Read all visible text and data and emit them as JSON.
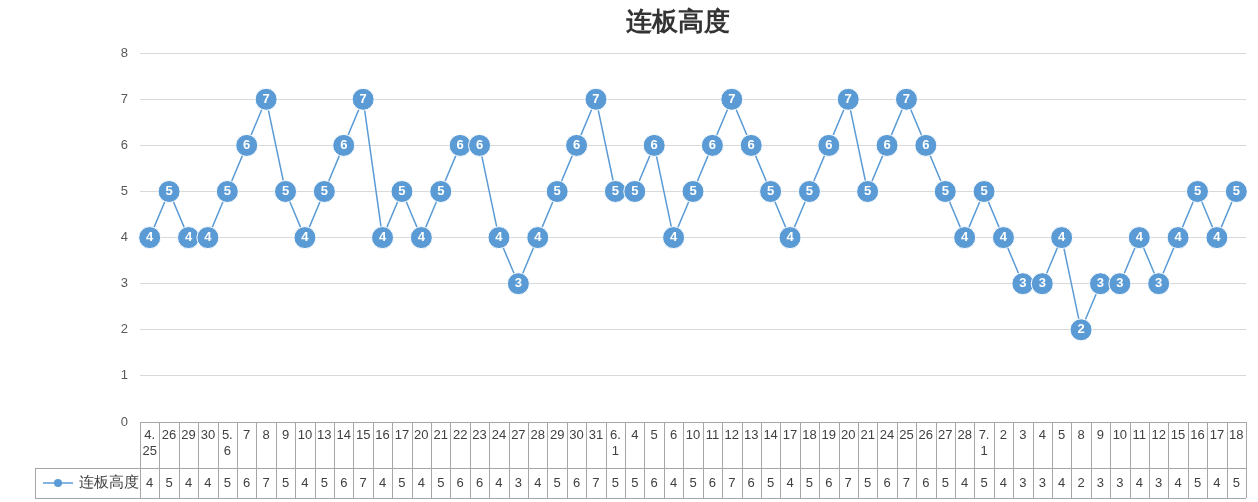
{
  "chart_data": {
    "type": "line",
    "title": "连板高度",
    "categories": [
      "4.25",
      "26",
      "29",
      "30",
      "5.6",
      "7",
      "8",
      "9",
      "10",
      "13",
      "14",
      "15",
      "16",
      "17",
      "20",
      "21",
      "22",
      "23",
      "24",
      "27",
      "28",
      "29",
      "30",
      "31",
      "6.1",
      "4",
      "5",
      "6",
      "10",
      "11",
      "12",
      "13",
      "14",
      "17",
      "18",
      "19",
      "20",
      "21",
      "24",
      "25",
      "26",
      "27",
      "28",
      "7.1",
      "2",
      "3",
      "4",
      "5",
      "8",
      "9",
      "10",
      "11",
      "12",
      "15",
      "16",
      "17",
      "18"
    ],
    "series": [
      {
        "name": "连板高度",
        "color": "#5b9bd5",
        "values": [
          4,
          5,
          4,
          4,
          5,
          6,
          7,
          5,
          4,
          5,
          6,
          7,
          4,
          5,
          4,
          5,
          6,
          6,
          4,
          3,
          4,
          5,
          6,
          7,
          5,
          5,
          6,
          4,
          5,
          6,
          7,
          6,
          5,
          4,
          5,
          6,
          7,
          5,
          6,
          7,
          6,
          5,
          4,
          5,
          4,
          3,
          3,
          4,
          2,
          3,
          3,
          4,
          3,
          4,
          5,
          4,
          5
        ]
      }
    ],
    "ylim": [
      0,
      8
    ],
    "yticks": [
      0,
      1,
      2,
      3,
      4,
      5,
      6,
      7,
      8
    ],
    "grid": "y",
    "legend": "bottom left",
    "marker": "circle",
    "line_style": "solid",
    "data_labels": true
  }
}
